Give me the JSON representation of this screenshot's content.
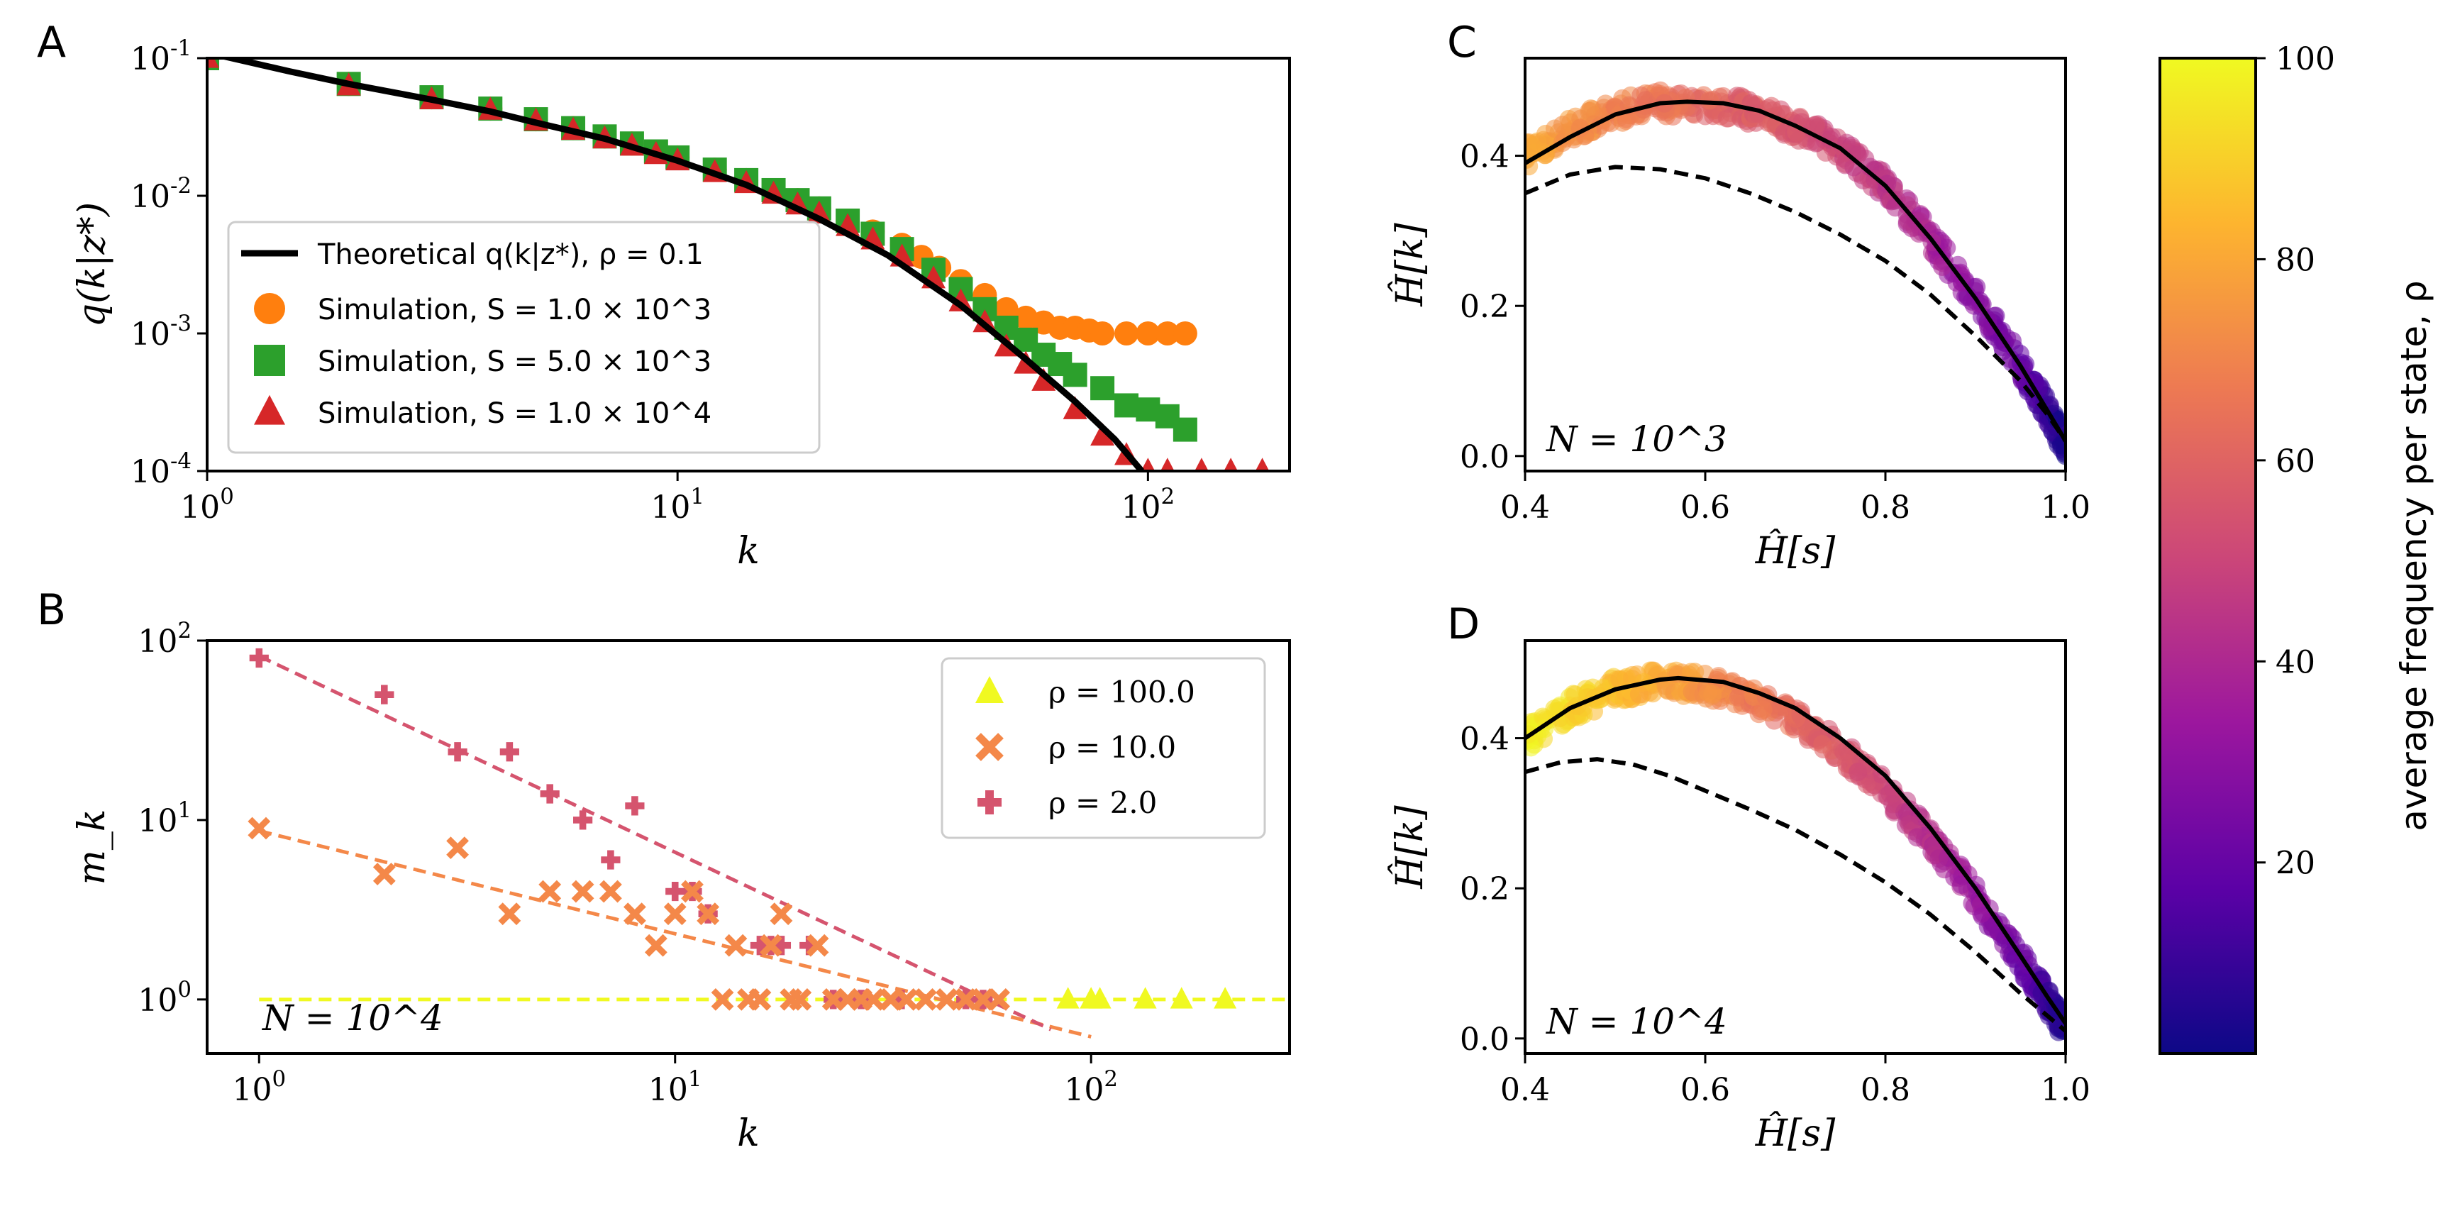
{
  "figure": {
    "panel_letters": [
      "A",
      "B",
      "C",
      "D"
    ]
  },
  "chart_data": [
    {
      "id": "A",
      "type": "scatter",
      "xscale": "log",
      "yscale": "log",
      "xlim": [
        1,
        200
      ],
      "ylim": [
        0.0001,
        0.1
      ],
      "xlabel": "k",
      "ylabel": "q(k|z*)",
      "xticks": [
        {
          "v": 1,
          "label": "10^0"
        },
        {
          "v": 10,
          "label": "10^1"
        },
        {
          "v": 100,
          "label": "10^2"
        }
      ],
      "yticks": [
        {
          "v": 0.1,
          "label": "10^-1"
        },
        {
          "v": 0.01,
          "label": "10^-2"
        },
        {
          "v": 0.001,
          "label": "10^-3"
        },
        {
          "v": 0.0001,
          "label": "10^-4"
        }
      ],
      "legend_position": "lower-left",
      "theory": {
        "name": "Theoretical q(k|z*), ρ = 0.1",
        "color": "#000000",
        "x": [
          1,
          1.5,
          2,
          3,
          4,
          5,
          7,
          10,
          14,
          20,
          28,
          40,
          55,
          70,
          85,
          97
        ],
        "y": [
          0.11,
          0.08,
          0.065,
          0.05,
          0.041,
          0.034,
          0.026,
          0.018,
          0.012,
          0.0068,
          0.0037,
          0.0016,
          0.00065,
          0.00032,
          0.00017,
          0.0001
        ]
      },
      "series": [
        {
          "name": "Simulation, S = 1.0 × 10^3",
          "color": "#ff7f0e",
          "marker": "circle",
          "x": [
            1,
            2,
            3,
            4,
            5,
            6,
            7,
            8,
            9,
            10,
            12,
            14,
            16,
            18,
            20,
            23,
            26,
            30,
            33,
            36,
            40,
            45,
            50,
            55,
            60,
            65,
            70,
            75,
            80,
            90,
            100,
            110,
            120
          ],
          "y": [
            0.1,
            0.065,
            0.052,
            0.043,
            0.036,
            0.031,
            0.027,
            0.024,
            0.021,
            0.019,
            0.0155,
            0.013,
            0.011,
            0.0093,
            0.0081,
            0.0066,
            0.0055,
            0.0044,
            0.0036,
            0.003,
            0.0024,
            0.0019,
            0.0015,
            0.0013,
            0.0012,
            0.0011,
            0.0011,
            0.00105,
            0.001,
            0.001,
            0.001,
            0.001,
            0.001
          ]
        },
        {
          "name": "Simulation, S = 5.0 × 10^3",
          "color": "#2ca02c",
          "marker": "square",
          "x": [
            1,
            2,
            3,
            4,
            5,
            6,
            7,
            8,
            9,
            10,
            12,
            14,
            16,
            18,
            20,
            23,
            26,
            30,
            35,
            40,
            45,
            50,
            55,
            60,
            65,
            70,
            80,
            90,
            100,
            110,
            120
          ],
          "y": [
            0.1,
            0.065,
            0.052,
            0.043,
            0.036,
            0.031,
            0.027,
            0.024,
            0.021,
            0.019,
            0.0155,
            0.013,
            0.011,
            0.0093,
            0.0081,
            0.0066,
            0.0053,
            0.0041,
            0.0029,
            0.0021,
            0.0015,
            0.0011,
            0.0009,
            0.0007,
            0.0006,
            0.0005,
            0.0004,
            0.0003,
            0.00028,
            0.00025,
            0.0002
          ]
        },
        {
          "name": "Simulation, S = 1.0 × 10^4",
          "color": "#d62728",
          "marker": "triangle",
          "x": [
            1,
            2,
            3,
            4,
            5,
            6,
            7,
            8,
            9,
            10,
            12,
            14,
            16,
            18,
            20,
            23,
            26,
            30,
            35,
            40,
            45,
            50,
            55,
            60,
            70,
            80,
            90,
            100,
            110,
            130,
            150,
            175
          ],
          "y": [
            0.1,
            0.063,
            0.05,
            0.042,
            0.035,
            0.03,
            0.026,
            0.023,
            0.02,
            0.018,
            0.0148,
            0.0123,
            0.0103,
            0.0086,
            0.0074,
            0.006,
            0.0048,
            0.0036,
            0.0025,
            0.0017,
            0.0012,
            0.0008,
            0.0006,
            0.00045,
            0.00028,
            0.00018,
            0.00013,
            0.0001,
            0.0001,
            0.0001,
            0.0001,
            0.0001
          ]
        }
      ]
    },
    {
      "id": "B",
      "type": "scatter",
      "xscale": "log",
      "yscale": "log",
      "xlim": [
        0.75,
        300
      ],
      "ylim": [
        0.5,
        100
      ],
      "xlabel": "k",
      "ylabel": "m_k",
      "xticks": [
        {
          "v": 1,
          "label": "10^0"
        },
        {
          "v": 10,
          "label": "10^1"
        },
        {
          "v": 100,
          "label": "10^2"
        }
      ],
      "yticks": [
        {
          "v": 100,
          "label": "10^2"
        },
        {
          "v": 10,
          "label": "10^1"
        },
        {
          "v": 1,
          "label": "10^0"
        }
      ],
      "annotation": "N = 10^4",
      "legend_position": "upper-right",
      "series": [
        {
          "name": "ρ = 100.0",
          "color": "#f0f921",
          "marker": "triangle",
          "x": [
            88,
            100,
            105,
            135,
            165,
            210
          ],
          "y": [
            1,
            1,
            1,
            1,
            1,
            1
          ],
          "fit": {
            "x": [
              1,
              300
            ],
            "y": [
              1,
              1
            ]
          }
        },
        {
          "name": "ρ = 10.0",
          "color": "#f48849",
          "marker": "x",
          "x": [
            1,
            2,
            3,
            4,
            5,
            6,
            7,
            8,
            9,
            10,
            11,
            12,
            13,
            14,
            15,
            16,
            17,
            18,
            19,
            20,
            22,
            24,
            26,
            28,
            30,
            33,
            36,
            40,
            45,
            50,
            55,
            60
          ],
          "y": [
            9,
            5,
            7,
            3,
            4,
            4,
            4,
            3,
            2,
            3,
            4,
            3,
            1,
            2,
            1,
            1,
            2,
            3,
            1,
            1,
            2,
            1,
            1,
            1,
            1,
            1,
            1,
            1,
            1,
            1,
            1,
            1
          ],
          "fit": {
            "x": [
              1,
              100
            ],
            "y": [
              8.7,
              0.62
            ]
          }
        },
        {
          "name": "ρ = 2.0",
          "color": "#d5546e",
          "marker": "plus",
          "x": [
            1,
            2,
            3,
            4,
            5,
            6,
            7,
            8,
            10,
            11,
            12,
            16,
            17,
            18,
            21,
            24,
            28,
            35,
            50,
            55
          ],
          "y": [
            80,
            50,
            24,
            24,
            14,
            10,
            6,
            12,
            4,
            4,
            3,
            2,
            2,
            2,
            2,
            1,
            1,
            1,
            1,
            1
          ],
          "fit": {
            "x": [
              1,
              80
            ],
            "y": [
              82,
              0.68
            ]
          }
        }
      ]
    },
    {
      "id": "C",
      "type": "scatter",
      "xlim": [
        0.4,
        1.0
      ],
      "ylim": [
        -0.02,
        0.53
      ],
      "xlabel": "Ĥ[s]",
      "ylabel": "Ĥ[k]",
      "xticks": [
        {
          "v": 0.4,
          "label": "0.4"
        },
        {
          "v": 0.6,
          "label": "0.6"
        },
        {
          "v": 0.8,
          "label": "0.8"
        },
        {
          "v": 1.0,
          "label": "1.0"
        }
      ],
      "yticks": [
        {
          "v": 0.0,
          "label": "0.0"
        },
        {
          "v": 0.2,
          "label": "0.2"
        },
        {
          "v": 0.4,
          "label": "0.4"
        }
      ],
      "annotation": "N = 10^3",
      "solid_curve": {
        "x": [
          0.4,
          0.45,
          0.5,
          0.55,
          0.58,
          0.62,
          0.66,
          0.7,
          0.75,
          0.8,
          0.85,
          0.9,
          0.95,
          0.98,
          1.0
        ],
        "y": [
          0.39,
          0.425,
          0.455,
          0.47,
          0.472,
          0.47,
          0.46,
          0.44,
          0.41,
          0.36,
          0.29,
          0.21,
          0.12,
          0.06,
          0.02
        ]
      },
      "dashed_curve": {
        "x": [
          0.4,
          0.45,
          0.5,
          0.55,
          0.6,
          0.65,
          0.7,
          0.75,
          0.8,
          0.85,
          0.9,
          0.95,
          0.98,
          1.0
        ],
        "y": [
          0.35,
          0.375,
          0.385,
          0.382,
          0.37,
          0.35,
          0.325,
          0.295,
          0.26,
          0.215,
          0.16,
          0.1,
          0.055,
          0.02
        ]
      },
      "scatter_band": {
        "x": [
          0.4,
          0.45,
          0.5,
          0.55,
          0.6,
          0.65,
          0.7,
          0.75,
          0.8,
          0.85,
          0.9,
          0.95,
          0.98,
          1.0
        ],
        "y": [
          0.4,
          0.435,
          0.46,
          0.47,
          0.47,
          0.46,
          0.44,
          0.41,
          0.36,
          0.29,
          0.21,
          0.12,
          0.06,
          0.01
        ],
        "rho": [
          80,
          75,
          70,
          66,
          62,
          58,
          55,
          50,
          45,
          38,
          30,
          20,
          10,
          2
        ]
      }
    },
    {
      "id": "D",
      "type": "scatter",
      "xlim": [
        0.4,
        1.0
      ],
      "ylim": [
        -0.02,
        0.53
      ],
      "xlabel": "Ĥ[s]",
      "ylabel": "Ĥ[k]",
      "xticks": [
        {
          "v": 0.4,
          "label": "0.4"
        },
        {
          "v": 0.6,
          "label": "0.6"
        },
        {
          "v": 0.8,
          "label": "0.8"
        },
        {
          "v": 1.0,
          "label": "1.0"
        }
      ],
      "yticks": [
        {
          "v": 0.0,
          "label": "0.0"
        },
        {
          "v": 0.2,
          "label": "0.2"
        },
        {
          "v": 0.4,
          "label": "0.4"
        }
      ],
      "annotation": "N = 10^4",
      "solid_curve": {
        "x": [
          0.4,
          0.45,
          0.5,
          0.55,
          0.57,
          0.62,
          0.66,
          0.7,
          0.75,
          0.8,
          0.85,
          0.9,
          0.95,
          0.98,
          1.0
        ],
        "y": [
          0.4,
          0.44,
          0.465,
          0.478,
          0.48,
          0.475,
          0.46,
          0.44,
          0.4,
          0.35,
          0.28,
          0.2,
          0.11,
          0.055,
          0.02
        ]
      },
      "dashed_curve": {
        "x": [
          0.4,
          0.44,
          0.48,
          0.52,
          0.56,
          0.6,
          0.65,
          0.7,
          0.75,
          0.8,
          0.85,
          0.9,
          0.95,
          0.98,
          1.0
        ],
        "y": [
          0.355,
          0.368,
          0.372,
          0.365,
          0.35,
          0.33,
          0.305,
          0.278,
          0.245,
          0.208,
          0.165,
          0.115,
          0.06,
          0.03,
          0.01
        ]
      },
      "scatter_band": {
        "x": [
          0.4,
          0.45,
          0.5,
          0.55,
          0.6,
          0.65,
          0.7,
          0.75,
          0.8,
          0.85,
          0.9,
          0.95,
          0.98,
          1.0
        ],
        "y": [
          0.4,
          0.44,
          0.465,
          0.475,
          0.47,
          0.455,
          0.425,
          0.385,
          0.33,
          0.265,
          0.19,
          0.105,
          0.05,
          0.01
        ],
        "rho": [
          98,
          92,
          86,
          80,
          74,
          68,
          62,
          56,
          50,
          42,
          34,
          22,
          10,
          2
        ]
      }
    },
    {
      "id": "colorbar",
      "type": "colorbar",
      "label": "average frequency per state, ρ",
      "range": [
        1,
        100
      ],
      "ticks": [
        {
          "v": 20,
          "label": "20"
        },
        {
          "v": 40,
          "label": "40"
        },
        {
          "v": 60,
          "label": "60"
        },
        {
          "v": 80,
          "label": "80"
        },
        {
          "v": 100,
          "label": "100"
        }
      ],
      "colormap": [
        "#0d0887",
        "#5c01a6",
        "#9c179e",
        "#cc4778",
        "#ed7953",
        "#fdb42f",
        "#f0f921"
      ]
    }
  ]
}
